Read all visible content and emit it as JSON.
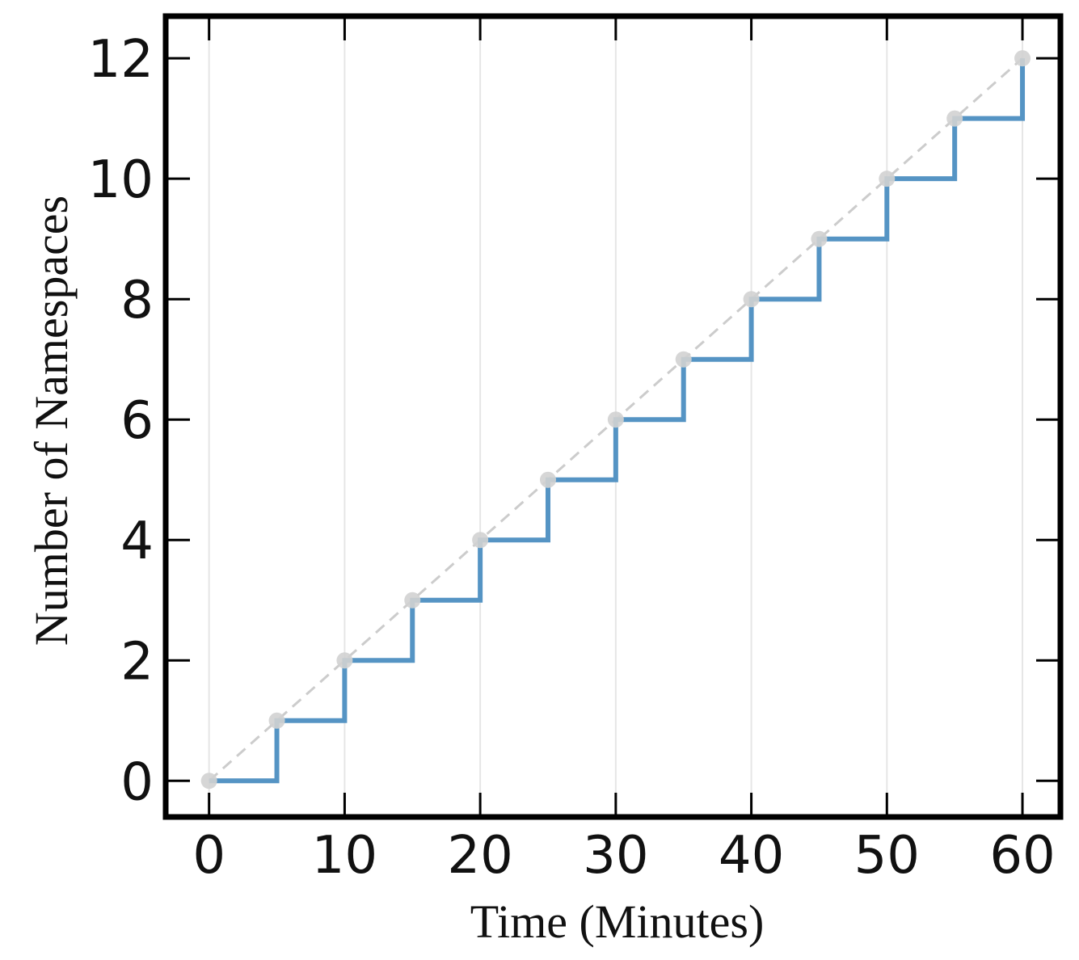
{
  "chart_data": {
    "type": "line",
    "title": "",
    "xlabel": "Time (Minutes)",
    "ylabel": "Number of Namespaces",
    "xlim": [
      -3.2,
      62.8
    ],
    "ylim": [
      -0.6,
      12.7
    ],
    "xticks": [
      0,
      10,
      20,
      30,
      40,
      50,
      60
    ],
    "yticks": [
      0,
      2,
      4,
      6,
      8,
      10,
      12
    ],
    "grid": "vertical",
    "legend": "none",
    "series": [
      {
        "style": "step",
        "color": "#5594c4",
        "x": [
          0,
          5,
          5,
          10,
          10,
          15,
          15,
          20,
          20,
          25,
          25,
          30,
          30,
          35,
          35,
          40,
          40,
          45,
          45,
          50,
          50,
          55,
          55,
          60,
          60
        ],
        "y": [
          0,
          0,
          1,
          1,
          2,
          2,
          3,
          3,
          4,
          4,
          5,
          5,
          6,
          6,
          7,
          7,
          8,
          8,
          9,
          9,
          10,
          10,
          11,
          11,
          12
        ]
      },
      {
        "style": "dashed-with-markers",
        "color": "#cccccc",
        "x": [
          0,
          5,
          10,
          15,
          20,
          25,
          30,
          35,
          40,
          45,
          50,
          55,
          60
        ],
        "y": [
          0,
          1,
          2,
          3,
          4,
          5,
          6,
          7,
          8,
          9,
          10,
          11,
          12
        ]
      }
    ]
  }
}
